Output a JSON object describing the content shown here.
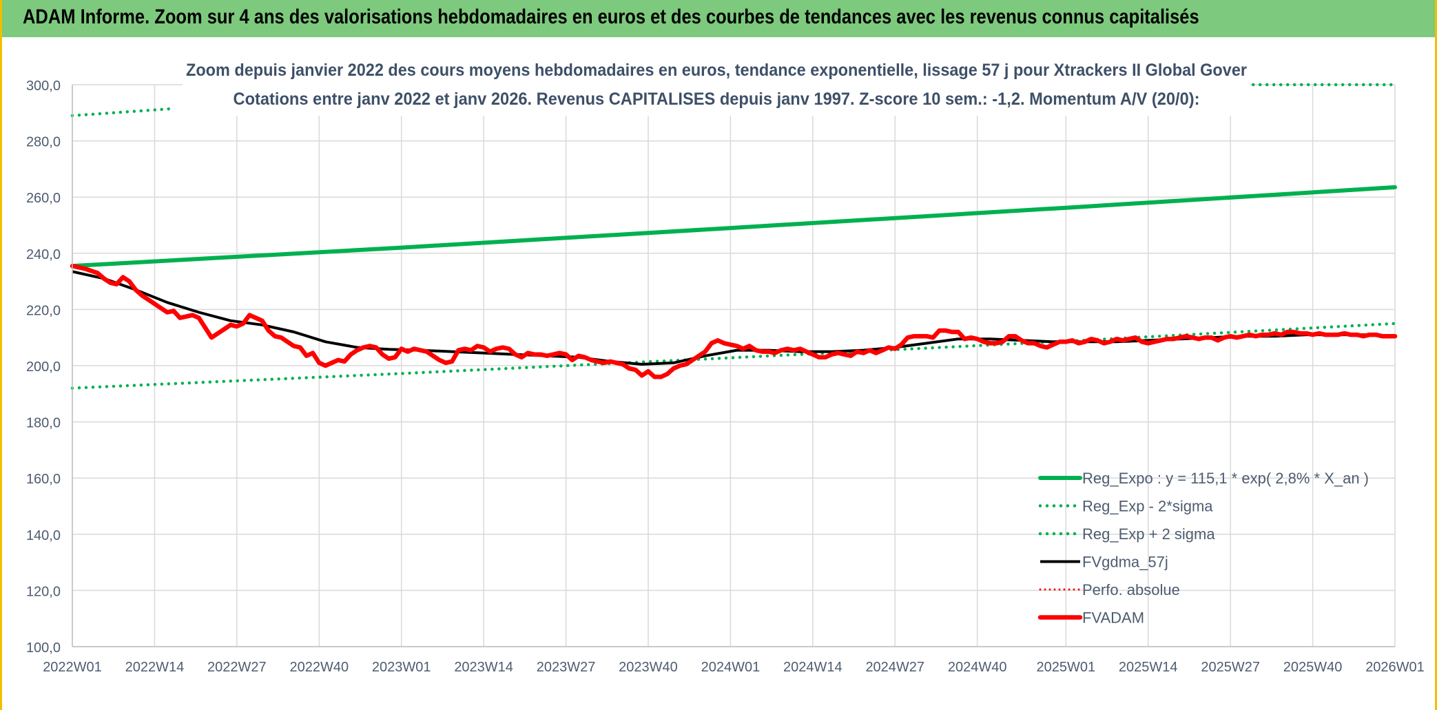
{
  "header": {
    "title": "ADAM Informe. Zoom sur 4 ans des valorisations hebdomadaires en euros et des courbes de tendances avec les revenus connus capitalisés"
  },
  "chart_data": {
    "type": "line",
    "title": "Zoom depuis janvier 2022 des cours moyens hebdomadaires en euros, tendance exponentielle, lissage 57 j pour Xtrackers II Global Gover",
    "subtitle": "Cotations entre janv 2022 et janv 2026. Revenus CAPITALISES depuis janv 1997. Z-score 10 sem.: -1,2. Momentum A/V (20/0):",
    "xlabel": "",
    "ylabel": "",
    "ylim": [
      100,
      300
    ],
    "xlim": [
      0,
      209
    ],
    "grid": true,
    "legend_position": "bottom-right",
    "x_ticks": [
      {
        "label": "2022W01",
        "week": 0
      },
      {
        "label": "2022W14",
        "week": 13
      },
      {
        "label": "2022W27",
        "week": 26
      },
      {
        "label": "2022W40",
        "week": 39
      },
      {
        "label": "2023W01",
        "week": 52
      },
      {
        "label": "2023W14",
        "week": 65
      },
      {
        "label": "2023W27",
        "week": 78
      },
      {
        "label": "2023W40",
        "week": 91
      },
      {
        "label": "2024W01",
        "week": 104
      },
      {
        "label": "2024W14",
        "week": 117
      },
      {
        "label": "2024W27",
        "week": 130
      },
      {
        "label": "2024W40",
        "week": 143
      },
      {
        "label": "2025W01",
        "week": 157
      },
      {
        "label": "2025W14",
        "week": 170
      },
      {
        "label": "2025W27",
        "week": 183
      },
      {
        "label": "2025W40",
        "week": 196
      },
      {
        "label": "2026W01",
        "week": 209
      }
    ],
    "y_ticks": [
      {
        "label": "100,0",
        "value": 100
      },
      {
        "label": "120,0",
        "value": 120
      },
      {
        "label": "140,0",
        "value": 140
      },
      {
        "label": "160,0",
        "value": 160
      },
      {
        "label": "180,0",
        "value": 180
      },
      {
        "label": "200,0",
        "value": 200
      },
      {
        "label": "220,0",
        "value": 220
      },
      {
        "label": "240,0",
        "value": 240
      },
      {
        "label": "260,0",
        "value": 260
      },
      {
        "label": "280,0",
        "value": 280
      },
      {
        "label": "300,0",
        "value": 300
      }
    ],
    "series": [
      {
        "name": "Reg_Expo : y = 115,1 * exp( 2,8% *  X_an )",
        "color": "#00b050",
        "style": "solid-thick",
        "points": [
          [
            0,
            235.5
          ],
          [
            52,
            242
          ],
          [
            104,
            249
          ],
          [
            157,
            256.2
          ],
          [
            209,
            263.5
          ]
        ]
      },
      {
        "name": "Reg_Exp - 2*sigma",
        "color": "#00b050",
        "style": "dotted",
        "points": [
          [
            0,
            192
          ],
          [
            52,
            197.2
          ],
          [
            104,
            202.8
          ],
          [
            157,
            208.7
          ],
          [
            209,
            215
          ]
        ]
      },
      {
        "name": "Reg_Exp + 2 sigma",
        "color": "#00b050",
        "style": "dotted",
        "points": [
          [
            0,
            289
          ],
          [
            16,
            291.5
          ],
          [
            16,
            null
          ],
          [
            167,
            null
          ],
          [
            167,
            300
          ],
          [
            209,
            300
          ]
        ]
      },
      {
        "name": "FVgdma_57j",
        "color": "#000000",
        "style": "solid",
        "points": [
          [
            0,
            233.5
          ],
          [
            5,
            231
          ],
          [
            10,
            227
          ],
          [
            15,
            222.5
          ],
          [
            20,
            219
          ],
          [
            25,
            216
          ],
          [
            30,
            214.5
          ],
          [
            35,
            212
          ],
          [
            40,
            208.5
          ],
          [
            45,
            206.5
          ],
          [
            50,
            205.8
          ],
          [
            55,
            205.5
          ],
          [
            60,
            205
          ],
          [
            65,
            204.5
          ],
          [
            70,
            204
          ],
          [
            75,
            203.5
          ],
          [
            80,
            203
          ],
          [
            85,
            201.5
          ],
          [
            90,
            200.5
          ],
          [
            95,
            201
          ],
          [
            100,
            203.5
          ],
          [
            105,
            205.5
          ],
          [
            110,
            205.5
          ],
          [
            115,
            205
          ],
          [
            120,
            205
          ],
          [
            125,
            205.5
          ],
          [
            130,
            206.5
          ],
          [
            135,
            208
          ],
          [
            140,
            209.5
          ],
          [
            145,
            209.5
          ],
          [
            150,
            209
          ],
          [
            155,
            208.5
          ],
          [
            160,
            208.5
          ],
          [
            165,
            208.5
          ],
          [
            170,
            209
          ],
          [
            175,
            209.5
          ],
          [
            180,
            210
          ],
          [
            185,
            210.5
          ],
          [
            190,
            210.5
          ],
          [
            195,
            211
          ],
          [
            200,
            211
          ],
          [
            205,
            211
          ],
          [
            209,
            210.5
          ]
        ]
      },
      {
        "name": "Perfo. absolue",
        "color": "#ff0000",
        "style": "dotted-thin",
        "points": []
      },
      {
        "name": "FVADAM",
        "color": "#ff0000",
        "style": "solid-thick",
        "points": [
          [
            0,
            235.5
          ],
          [
            2,
            234.5
          ],
          [
            4,
            233
          ],
          [
            5,
            231
          ],
          [
            6,
            229.5
          ],
          [
            7,
            229
          ],
          [
            8,
            231.5
          ],
          [
            9,
            230
          ],
          [
            10,
            227
          ],
          [
            11,
            225
          ],
          [
            12,
            223.5
          ],
          [
            13,
            222
          ],
          [
            14,
            220.5
          ],
          [
            15,
            219
          ],
          [
            16,
            219.5
          ],
          [
            17,
            217
          ],
          [
            18,
            217.5
          ],
          [
            19,
            218
          ],
          [
            20,
            217
          ],
          [
            21,
            213.5
          ],
          [
            22,
            210
          ],
          [
            23,
            211.5
          ],
          [
            24,
            213
          ],
          [
            25,
            214.5
          ],
          [
            26,
            214
          ],
          [
            27,
            215
          ],
          [
            28,
            218
          ],
          [
            29,
            217
          ],
          [
            30,
            216
          ],
          [
            31,
            212.5
          ],
          [
            32,
            210.5
          ],
          [
            33,
            210
          ],
          [
            34,
            208.5
          ],
          [
            35,
            207
          ],
          [
            36,
            206.5
          ],
          [
            37,
            203.5
          ],
          [
            38,
            204.5
          ],
          [
            39,
            201
          ],
          [
            40,
            200
          ],
          [
            41,
            201
          ],
          [
            42,
            202
          ],
          [
            43,
            201.5
          ],
          [
            44,
            204
          ],
          [
            45,
            205.5
          ],
          [
            46,
            206.5
          ],
          [
            47,
            207
          ],
          [
            48,
            206.5
          ],
          [
            49,
            204
          ],
          [
            50,
            202.5
          ],
          [
            51,
            203
          ],
          [
            52,
            206
          ],
          [
            53,
            205
          ],
          [
            54,
            206
          ],
          [
            55,
            205.5
          ],
          [
            56,
            205
          ],
          [
            57,
            203.5
          ],
          [
            58,
            202
          ],
          [
            59,
            201
          ],
          [
            60,
            201.5
          ],
          [
            61,
            205.5
          ],
          [
            62,
            206
          ],
          [
            63,
            205.5
          ],
          [
            64,
            207
          ],
          [
            65,
            206.5
          ],
          [
            66,
            205
          ],
          [
            67,
            206
          ],
          [
            68,
            206.5
          ],
          [
            69,
            206
          ],
          [
            70,
            204
          ],
          [
            71,
            203
          ],
          [
            72,
            204.5
          ],
          [
            73,
            204
          ],
          [
            74,
            204
          ],
          [
            75,
            203.5
          ],
          [
            76,
            204
          ],
          [
            77,
            204.5
          ],
          [
            78,
            204
          ],
          [
            79,
            202
          ],
          [
            80,
            203.5
          ],
          [
            81,
            203
          ],
          [
            82,
            202
          ],
          [
            83,
            201.5
          ],
          [
            84,
            201
          ],
          [
            85,
            201.5
          ],
          [
            86,
            201
          ],
          [
            87,
            200.5
          ],
          [
            88,
            199
          ],
          [
            89,
            198.5
          ],
          [
            90,
            196.5
          ],
          [
            91,
            198
          ],
          [
            92,
            196
          ],
          [
            93,
            196
          ],
          [
            94,
            197
          ],
          [
            95,
            199
          ],
          [
            96,
            200
          ],
          [
            97,
            200.5
          ],
          [
            98,
            202
          ],
          [
            99,
            203.5
          ],
          [
            100,
            205
          ],
          [
            101,
            208
          ],
          [
            102,
            209
          ],
          [
            103,
            208
          ],
          [
            104,
            207.5
          ],
          [
            105,
            207
          ],
          [
            106,
            206
          ],
          [
            107,
            207
          ],
          [
            108,
            205.5
          ],
          [
            109,
            205
          ],
          [
            110,
            205
          ],
          [
            111,
            204.5
          ],
          [
            112,
            205.5
          ],
          [
            113,
            206
          ],
          [
            114,
            205.5
          ],
          [
            115,
            206
          ],
          [
            116,
            205
          ],
          [
            117,
            204
          ],
          [
            118,
            203
          ],
          [
            119,
            203
          ],
          [
            120,
            204
          ],
          [
            121,
            204.5
          ],
          [
            122,
            204
          ],
          [
            123,
            203.5
          ],
          [
            124,
            205
          ],
          [
            125,
            204.5
          ],
          [
            126,
            205.5
          ],
          [
            127,
            204.5
          ],
          [
            128,
            205.5
          ],
          [
            129,
            206.5
          ],
          [
            130,
            206
          ],
          [
            131,
            207.5
          ],
          [
            132,
            210
          ],
          [
            133,
            210.5
          ],
          [
            134,
            210.5
          ],
          [
            135,
            210.5
          ],
          [
            136,
            210
          ],
          [
            137,
            212.5
          ],
          [
            138,
            212.5
          ],
          [
            139,
            212
          ],
          [
            140,
            212
          ],
          [
            141,
            209.5
          ],
          [
            142,
            210
          ],
          [
            143,
            209.5
          ],
          [
            144,
            208.5
          ],
          [
            145,
            208
          ],
          [
            146,
            208
          ],
          [
            147,
            208.5
          ],
          [
            148,
            210.5
          ],
          [
            149,
            210.5
          ],
          [
            150,
            209
          ],
          [
            151,
            208
          ],
          [
            152,
            208
          ],
          [
            153,
            207
          ],
          [
            154,
            206.5
          ],
          [
            155,
            207.5
          ],
          [
            156,
            208.5
          ],
          [
            157,
            208.5
          ],
          [
            158,
            209
          ],
          [
            159,
            208
          ],
          [
            160,
            208.5
          ],
          [
            161,
            209.5
          ],
          [
            162,
            209
          ],
          [
            163,
            208
          ],
          [
            164,
            208.5
          ],
          [
            165,
            209.5
          ],
          [
            166,
            209
          ],
          [
            167,
            209.5
          ],
          [
            168,
            210
          ],
          [
            169,
            208.5
          ],
          [
            170,
            208
          ],
          [
            171,
            208.5
          ],
          [
            172,
            209
          ],
          [
            173,
            209.5
          ],
          [
            174,
            209.5
          ],
          [
            175,
            210
          ],
          [
            176,
            210.5
          ],
          [
            177,
            210
          ],
          [
            178,
            209.5
          ],
          [
            179,
            210
          ],
          [
            180,
            210
          ],
          [
            181,
            209
          ],
          [
            182,
            210
          ],
          [
            183,
            210.5
          ],
          [
            184,
            210
          ],
          [
            185,
            210.5
          ],
          [
            186,
            211
          ],
          [
            187,
            210.5
          ],
          [
            188,
            211
          ],
          [
            189,
            211
          ],
          [
            190,
            211.5
          ],
          [
            191,
            211
          ],
          [
            192,
            212
          ],
          [
            193,
            212
          ],
          [
            194,
            211.5
          ],
          [
            195,
            211.5
          ],
          [
            196,
            211
          ],
          [
            197,
            211.5
          ],
          [
            198,
            211
          ],
          [
            199,
            211
          ],
          [
            200,
            211
          ],
          [
            201,
            211.5
          ],
          [
            202,
            211
          ],
          [
            203,
            211
          ],
          [
            204,
            210.5
          ],
          [
            205,
            211
          ],
          [
            206,
            211
          ],
          [
            207,
            210.5
          ],
          [
            208,
            210.5
          ],
          [
            209,
            210.5
          ]
        ]
      }
    ]
  }
}
